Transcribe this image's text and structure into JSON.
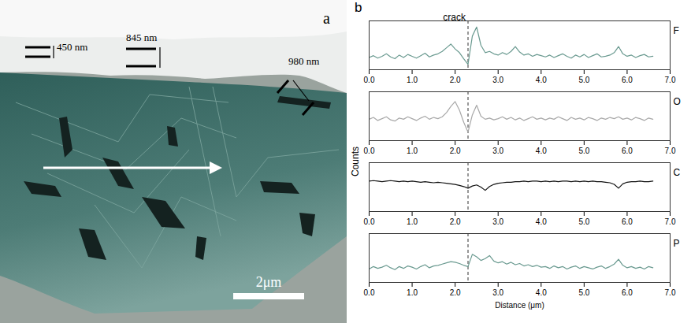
{
  "panel_a": {
    "label": "a",
    "thicknesses": [
      "450 nm",
      "845 nm",
      "980 nm"
    ],
    "scale_bar": "2μm"
  },
  "panel_b": {
    "label": "b",
    "y_label": "Counts",
    "x_label": "Distance (μm)"
  },
  "chart_data": [
    {
      "type": "line",
      "title": "F",
      "color": "#6a9a90",
      "tick_labels": "x",
      "grid": false,
      "xlim": [
        0,
        7
      ],
      "xticks": [
        0,
        1,
        2,
        3,
        4,
        5,
        6,
        7
      ],
      "ylim": [
        0,
        8
      ],
      "vlines": [
        2.3
      ],
      "annotation": {
        "text": "crack",
        "x": 2.3
      },
      "x": [
        0,
        0.1,
        0.2,
        0.3,
        0.4,
        0.5,
        0.6,
        0.7,
        0.8,
        0.9,
        1,
        1.1,
        1.2,
        1.3,
        1.4,
        1.5,
        1.6,
        1.7,
        1.8,
        1.9,
        2,
        2.1,
        2.2,
        2.3,
        2.4,
        2.5,
        2.6,
        2.7,
        2.8,
        2.9,
        3,
        3.1,
        3.2,
        3.3,
        3.4,
        3.5,
        3.6,
        3.7,
        3.8,
        3.9,
        4,
        4.1,
        4.2,
        4.3,
        4.4,
        4.5,
        4.6,
        4.7,
        4.8,
        4.9,
        5,
        5.1,
        5.2,
        5.3,
        5.4,
        5.5,
        5.6,
        5.7,
        5.8,
        5.9,
        6,
        6.1,
        6.2,
        6.3,
        6.4,
        6.5,
        6.6
      ],
      "values": [
        2.0,
        2.3,
        1.9,
        2.2,
        2.6,
        2.1,
        1.8,
        2.4,
        2.0,
        2.5,
        2.2,
        1.9,
        2.3,
        2.7,
        2.1,
        2.4,
        2.6,
        3.0,
        3.6,
        4.2,
        3.4,
        2.8,
        1.8,
        0.9,
        5.5,
        7.0,
        4.0,
        2.8,
        3.0,
        2.6,
        2.4,
        2.8,
        2.5,
        3.0,
        3.8,
        2.9,
        2.4,
        2.6,
        2.2,
        2.5,
        2.3,
        2.1,
        2.4,
        2.0,
        2.3,
        2.6,
        2.2,
        1.9,
        2.4,
        2.1,
        2.5,
        2.0,
        2.3,
        2.6,
        2.1,
        2.2,
        2.4,
        2.8,
        3.8,
        2.6,
        2.2,
        2.4,
        2.0,
        2.3,
        2.5,
        2.1,
        2.2
      ]
    },
    {
      "type": "line",
      "title": "O",
      "color": "#a8a8a8",
      "tick_labels": "x",
      "grid": false,
      "xlim": [
        0,
        7
      ],
      "xticks": [
        0,
        1,
        2,
        3,
        4,
        5,
        6,
        7
      ],
      "ylim": [
        0,
        8
      ],
      "vlines": [
        2.3
      ],
      "x": [
        0,
        0.1,
        0.2,
        0.3,
        0.4,
        0.5,
        0.6,
        0.7,
        0.8,
        0.9,
        1,
        1.1,
        1.2,
        1.3,
        1.4,
        1.5,
        1.6,
        1.7,
        1.8,
        1.9,
        2,
        2.1,
        2.2,
        2.3,
        2.4,
        2.5,
        2.6,
        2.7,
        2.8,
        2.9,
        3,
        3.1,
        3.2,
        3.3,
        3.4,
        3.5,
        3.6,
        3.7,
        3.8,
        3.9,
        4,
        4.1,
        4.2,
        4.3,
        4.4,
        4.5,
        4.6,
        4.7,
        4.8,
        4.9,
        5,
        5.1,
        5.2,
        5.3,
        5.4,
        5.5,
        5.6,
        5.7,
        5.8,
        5.9,
        6,
        6.1,
        6.2,
        6.3,
        6.4,
        6.5,
        6.6
      ],
      "values": [
        3.5,
        3.8,
        3.3,
        3.6,
        3.9,
        3.4,
        3.2,
        3.7,
        3.5,
        3.9,
        3.6,
        3.3,
        3.7,
        4.0,
        3.5,
        3.8,
        3.6,
        3.9,
        4.6,
        5.6,
        6.4,
        5.0,
        3.0,
        1.4,
        4.2,
        5.8,
        4.0,
        3.5,
        3.7,
        3.4,
        3.6,
        3.9,
        3.5,
        3.8,
        3.4,
        3.7,
        3.3,
        3.6,
        3.9,
        3.5,
        3.7,
        3.4,
        3.7,
        3.5,
        3.9,
        3.6,
        3.3,
        3.8,
        3.5,
        3.7,
        3.4,
        3.8,
        3.6,
        3.3,
        3.7,
        3.5,
        3.8,
        3.6,
        3.9,
        3.5,
        3.7,
        3.4,
        3.8,
        3.6,
        3.3,
        3.7,
        3.5
      ]
    },
    {
      "type": "line",
      "title": "C",
      "color": "#111111",
      "tick_labels": "x",
      "grid": false,
      "xlim": [
        0,
        7
      ],
      "xticks": [
        0,
        1,
        2,
        3,
        4,
        5,
        6,
        7
      ],
      "ylim": [
        0,
        9
      ],
      "vlines": [
        2.3
      ],
      "x": [
        0,
        0.1,
        0.2,
        0.3,
        0.4,
        0.5,
        0.6,
        0.7,
        0.8,
        0.9,
        1,
        1.1,
        1.2,
        1.3,
        1.4,
        1.5,
        1.6,
        1.7,
        1.8,
        1.9,
        2,
        2.1,
        2.2,
        2.3,
        2.4,
        2.5,
        2.6,
        2.7,
        2.8,
        2.9,
        3,
        3.1,
        3.2,
        3.3,
        3.4,
        3.5,
        3.6,
        3.7,
        3.8,
        3.9,
        4,
        4.1,
        4.2,
        4.3,
        4.4,
        4.5,
        4.6,
        4.7,
        4.8,
        4.9,
        5,
        5.1,
        5.2,
        5.3,
        5.4,
        5.5,
        5.6,
        5.7,
        5.8,
        5.9,
        6,
        6.1,
        6.2,
        6.3,
        6.4,
        6.5,
        6.6
      ],
      "values": [
        5.6,
        5.7,
        5.6,
        5.5,
        5.6,
        5.7,
        5.6,
        5.5,
        5.6,
        5.5,
        5.6,
        5.5,
        5.4,
        5.5,
        5.4,
        5.3,
        5.4,
        5.3,
        5.2,
        5.1,
        5.0,
        4.8,
        4.6,
        4.3,
        4.7,
        4.9,
        4.5,
        3.9,
        4.6,
        5.0,
        5.2,
        5.3,
        5.4,
        5.4,
        5.5,
        5.5,
        5.6,
        5.5,
        5.6,
        5.6,
        5.5,
        5.6,
        5.5,
        5.6,
        5.5,
        5.6,
        5.6,
        5.5,
        5.6,
        5.5,
        5.6,
        5.5,
        5.6,
        5.5,
        5.5,
        5.4,
        5.3,
        5.0,
        4.3,
        5.1,
        5.4,
        5.5,
        5.5,
        5.6,
        5.5,
        5.5,
        5.6
      ]
    },
    {
      "type": "line",
      "title": "P",
      "color": "#6a9a90",
      "tick_labels": "x",
      "grid": false,
      "xlim": [
        0,
        7
      ],
      "xticks": [
        0,
        1,
        2,
        3,
        4,
        5,
        6,
        7
      ],
      "ylim": [
        0,
        8
      ],
      "vlines": [
        2.3
      ],
      "x": [
        0,
        0.1,
        0.2,
        0.3,
        0.4,
        0.5,
        0.6,
        0.7,
        0.8,
        0.9,
        1,
        1.1,
        1.2,
        1.3,
        1.4,
        1.5,
        1.6,
        1.7,
        1.8,
        1.9,
        2,
        2.1,
        2.2,
        2.3,
        2.4,
        2.5,
        2.6,
        2.7,
        2.8,
        2.9,
        3,
        3.1,
        3.2,
        3.3,
        3.4,
        3.5,
        3.6,
        3.7,
        3.8,
        3.9,
        4,
        4.1,
        4.2,
        4.3,
        4.4,
        4.5,
        4.6,
        4.7,
        4.8,
        4.9,
        5,
        5.1,
        5.2,
        5.3,
        5.4,
        5.5,
        5.6,
        5.7,
        5.8,
        5.9,
        6,
        6.1,
        6.2,
        6.3,
        6.4,
        6.5,
        6.6
      ],
      "values": [
        2.2,
        2.6,
        2.3,
        2.5,
        2.8,
        2.4,
        2.1,
        2.6,
        2.3,
        2.7,
        2.5,
        2.2,
        2.6,
        2.9,
        2.4,
        2.7,
        2.8,
        3.0,
        3.2,
        3.4,
        3.3,
        3.1,
        2.8,
        2.6,
        4.6,
        4.2,
        3.6,
        3.9,
        4.4,
        3.5,
        3.2,
        3.4,
        3.0,
        3.3,
        2.9,
        3.1,
        2.7,
        2.9,
        2.6,
        2.8,
        2.5,
        2.6,
        2.3,
        2.7,
        2.4,
        2.6,
        2.2,
        2.5,
        2.7,
        2.3,
        2.6,
        2.4,
        2.2,
        2.5,
        2.7,
        2.3,
        2.6,
        3.0,
        3.8,
        2.8,
        2.4,
        2.6,
        2.3,
        2.5,
        2.2,
        2.6,
        2.4
      ]
    }
  ]
}
